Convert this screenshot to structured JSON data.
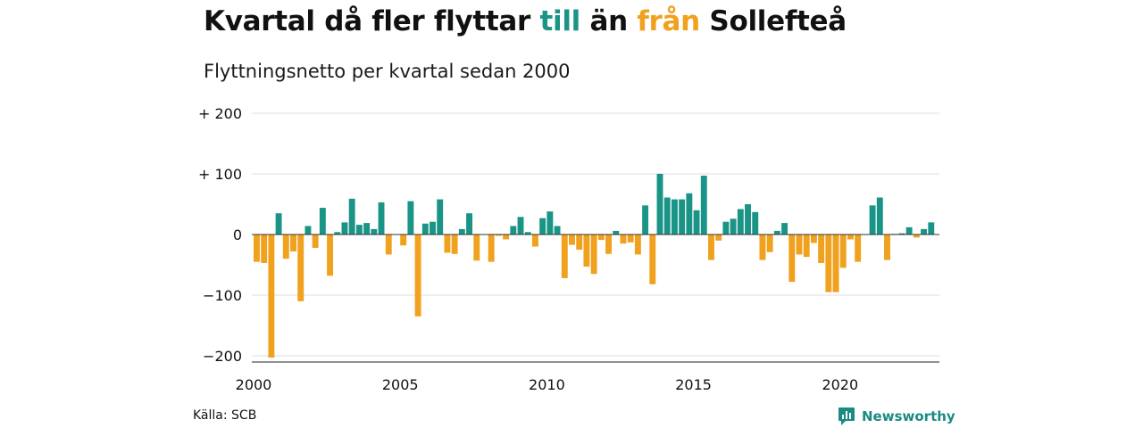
{
  "title": {
    "part1": "Kvartal då fler flyttar ",
    "till": "till",
    "part2": " än ",
    "fran": "från",
    "part3": " Sollefteå"
  },
  "subtitle": "Flyttningsnetto per kvartal sedan 2000",
  "source": "Källa: SCB",
  "brand": "Newsworthy",
  "colors": {
    "positive": "#1a9486",
    "negative": "#f0a11e",
    "grid": "#dddddd",
    "logo": "#1a8a82"
  },
  "chart_data": {
    "type": "bar",
    "start_year": 2000,
    "quarters_per_year": 4,
    "ylim": [
      -205,
      200
    ],
    "yticks": [
      {
        "value": 200,
        "label": "+ 200"
      },
      {
        "value": 100,
        "label": "+ 100"
      },
      {
        "value": 0,
        "label": "0"
      },
      {
        "value": -100,
        "label": "−100"
      },
      {
        "value": -200,
        "label": "−200"
      }
    ],
    "xticks": [
      {
        "year": 2000,
        "label": "2000"
      },
      {
        "year": 2005,
        "label": "2005"
      },
      {
        "year": 2010,
        "label": "2010"
      },
      {
        "year": 2015,
        "label": "2015"
      },
      {
        "year": 2020,
        "label": "2020"
      }
    ],
    "values": [
      -45,
      -47,
      -203,
      35,
      -40,
      -28,
      -110,
      14,
      -22,
      44,
      -68,
      4,
      20,
      59,
      16,
      19,
      9,
      53,
      -33,
      0,
      -18,
      55,
      -135,
      18,
      21,
      58,
      -30,
      -32,
      9,
      35,
      -43,
      0,
      -45,
      -2,
      -8,
      14,
      29,
      4,
      -20,
      27,
      38,
      14,
      -72,
      -17,
      -25,
      -53,
      -65,
      -9,
      -32,
      6,
      -15,
      -13,
      -33,
      48,
      -82,
      100,
      61,
      58,
      58,
      68,
      40,
      97,
      -42,
      -10,
      21,
      26,
      42,
      50,
      37,
      -42,
      -29,
      6,
      19,
      -78,
      -33,
      -37,
      -14,
      -47,
      -95,
      -95,
      -55,
      -8,
      -45,
      0,
      48,
      61,
      -42,
      1,
      2,
      12,
      -5,
      9,
      20
    ]
  }
}
